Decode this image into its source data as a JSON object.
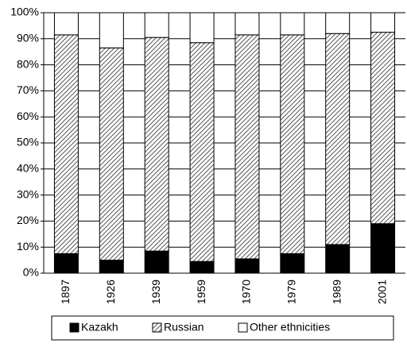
{
  "chart_data": {
    "type": "stacked_bar",
    "categories": [
      "1897",
      "1926",
      "1939",
      "1959",
      "1970",
      "1979",
      "1989",
      "2001"
    ],
    "series": [
      {
        "name": "Kazakh",
        "color": "#000000",
        "values": [
          7.5,
          5,
          8.5,
          4.5,
          5.5,
          7.5,
          11,
          19
        ]
      },
      {
        "name": "Russian",
        "color": "#555555",
        "hatch": true,
        "values": [
          84,
          81.5,
          82,
          84,
          86,
          84,
          81,
          73.5
        ]
      },
      {
        "name": "Other ethnicities",
        "color": "#ffffff",
        "values": [
          8.5,
          13.5,
          9.5,
          11.5,
          8.5,
          8.5,
          8,
          7.5
        ]
      }
    ],
    "ylim": [
      0,
      100
    ],
    "yticks": [
      {
        "value": 0,
        "label": "0%"
      },
      {
        "value": 10,
        "label": "10%"
      },
      {
        "value": 20,
        "label": "20%"
      },
      {
        "value": 30,
        "label": "30%"
      },
      {
        "value": 40,
        "label": "40%"
      },
      {
        "value": 50,
        "label": "50%"
      },
      {
        "value": 60,
        "label": "60%"
      },
      {
        "value": 70,
        "label": "70%"
      },
      {
        "value": 80,
        "label": "80%"
      },
      {
        "value": 90,
        "label": "90%"
      },
      {
        "value": 100,
        "label": "100%"
      }
    ],
    "grid": true,
    "legend": "bottom"
  }
}
